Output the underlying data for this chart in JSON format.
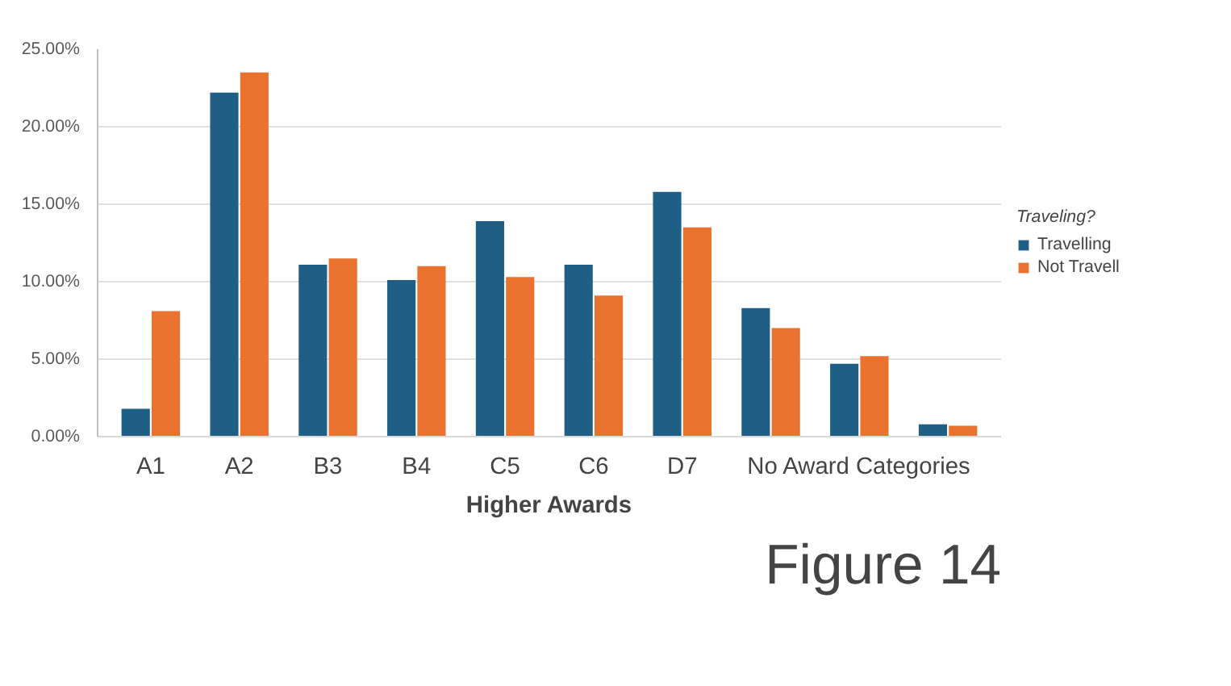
{
  "chart_data": {
    "type": "bar",
    "xlabel": "Higher Awards",
    "legend_title": "Traveling?",
    "legend": "right",
    "grid": "y",
    "categories": [
      "A1",
      "A2",
      "B3",
      "B4",
      "C5",
      "C6",
      "D7",
      null,
      "No Award Categories",
      null
    ],
    "series": [
      {
        "name": "Travelling",
        "color": "#1f5f85",
        "values": [
          1.8,
          22.2,
          11.1,
          10.1,
          13.9,
          11.1,
          15.8,
          8.3,
          4.7,
          0.8
        ]
      },
      {
        "name": "Not Travell",
        "color": "#e9722f",
        "values": [
          8.1,
          23.5,
          11.5,
          11.0,
          10.3,
          9.1,
          13.5,
          7.0,
          5.2,
          0.7
        ]
      }
    ],
    "ylim": [
      0,
      25
    ],
    "yticks": [
      {
        "value": 0,
        "label": "0.00%"
      },
      {
        "value": 5,
        "label": "5.00%"
      },
      {
        "value": 10,
        "label": "10.00%"
      },
      {
        "value": 15,
        "label": "15.00%"
      },
      {
        "value": 20,
        "label": "20.00%"
      },
      {
        "value": 25,
        "label": "25.00%"
      }
    ],
    "annotations": [
      "Figure 14"
    ]
  }
}
